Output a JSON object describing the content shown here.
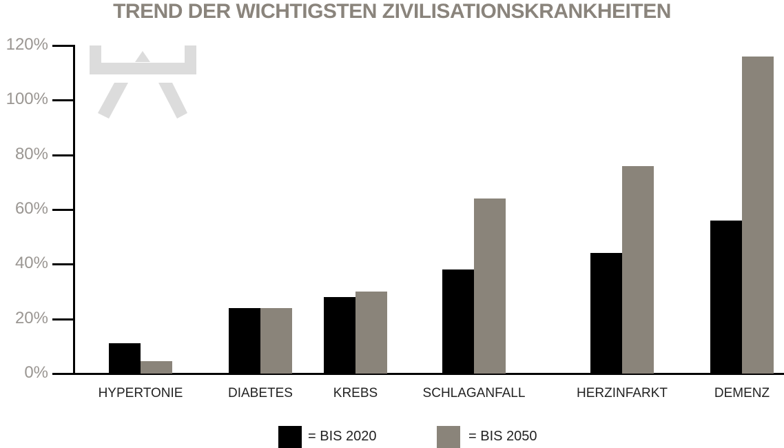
{
  "chart_data": {
    "type": "bar",
    "title": "TREND DER WICHTIGSTEN ZIVILISATIONSKRANKHEITEN",
    "xlabel": "",
    "ylabel": "",
    "ylim": [
      0,
      120
    ],
    "yticks": [
      "0%",
      "20%",
      "40%",
      "60%",
      "80%",
      "100%",
      "120%"
    ],
    "grid": false,
    "legend_position": "bottom",
    "categories": [
      "HYPERTONIE",
      "DIABETES",
      "KREBS",
      "SCHLAGANFALL",
      "HERZINFARKT",
      "DEMENZ"
    ],
    "series": [
      {
        "name": "= BIS 2020",
        "color": "#000000",
        "values": [
          11,
          24,
          28,
          38,
          44,
          56
        ]
      },
      {
        "name": "= BIS 2050",
        "color": "#8a847a",
        "values": [
          4.5,
          24,
          30,
          64,
          76,
          116
        ]
      }
    ]
  },
  "colors": {
    "title": "#8a847c",
    "tick_label": "#9a9692",
    "logo": "#dcdcdc"
  }
}
